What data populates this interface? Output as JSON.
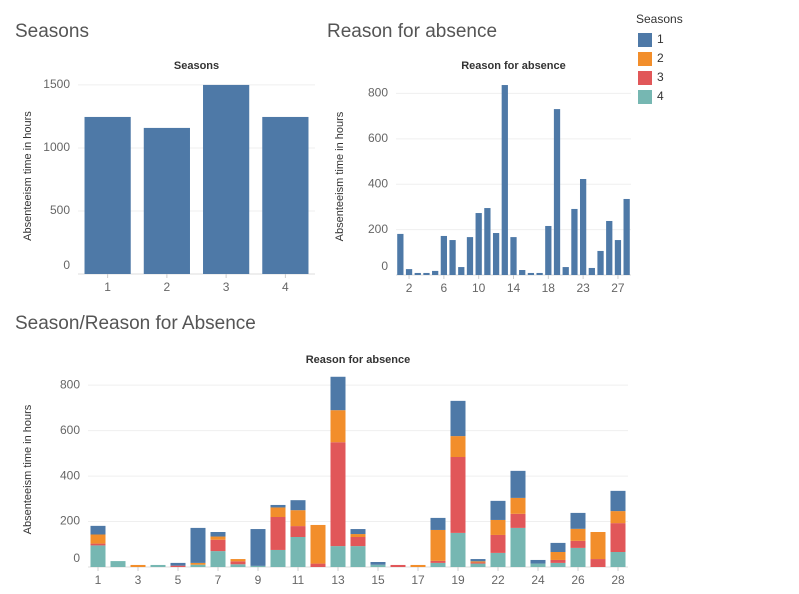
{
  "chart_data": [
    {
      "type": "bar",
      "heading": "Seasons",
      "title": "Seasons",
      "y_label": "Absenteeism time in hours",
      "categories": [
        1,
        2,
        3,
        4
      ],
      "values": [
        1246,
        1159,
        1500,
        1246
      ],
      "color": "#4e79a7",
      "ylim": [
        0,
        1555
      ],
      "yticks": [
        0,
        500,
        1000,
        1500
      ],
      "grid": true
    },
    {
      "type": "bar",
      "heading": "Reason for absence",
      "title": "Reason for absence",
      "y_label": "Absenteeism time in hours",
      "categories": [
        null,
        2,
        null,
        null,
        null,
        6,
        null,
        null,
        null,
        10,
        null,
        null,
        null,
        14,
        null,
        null,
        null,
        18,
        null,
        null,
        null,
        23,
        null,
        null,
        null,
        27,
        null
      ],
      "values": [
        181,
        26,
        9,
        9,
        18,
        172,
        154,
        35,
        167,
        273,
        295,
        185,
        837,
        167,
        22,
        9,
        9,
        216,
        731,
        35,
        291,
        423,
        31,
        106,
        238,
        154,
        335
      ],
      "color": "#4e79a7",
      "ylim": [
        0,
        868
      ],
      "yticks": [
        0,
        200,
        400,
        600,
        800
      ],
      "grid": true
    },
    {
      "type": "stacked_bar",
      "heading": "Season/Reason for Absence",
      "title": "Reason for absence",
      "y_label": "Absenteeism time in hours",
      "legend_title": "Seasons",
      "categories": [
        1,
        null,
        3,
        null,
        5,
        null,
        7,
        null,
        9,
        null,
        11,
        null,
        13,
        null,
        15,
        null,
        17,
        null,
        19,
        null,
        22,
        null,
        24,
        null,
        26,
        null,
        28
      ],
      "series": [
        {
          "name": "1",
          "color": "#4e79a7",
          "values": [
            38,
            null,
            null,
            null,
            12,
            154,
            20,
            null,
            162,
            11,
            44,
            null,
            147,
            22,
            12,
            null,
            null,
            53,
            155,
            10,
            84,
            119,
            16,
            40,
            70,
            null,
            89
          ]
        },
        {
          "name": "2",
          "color": "#f28e2b",
          "values": [
            40,
            null,
            9,
            null,
            null,
            8,
            14,
            10,
            null,
            42,
            70,
            170,
            141,
            13,
            null,
            null,
            9,
            136,
            92,
            5,
            66,
            70,
            null,
            35,
            53,
            119,
            53
          ]
        },
        {
          "name": "3",
          "color": "#e15759",
          "values": [
            8,
            null,
            null,
            null,
            6,
            null,
            50,
            13,
            null,
            145,
            48,
            15,
            457,
            40,
            null,
            9,
            null,
            9,
            334,
            5,
            79,
            62,
            null,
            13,
            31,
            35,
            127
          ]
        },
        {
          "name": "4",
          "color": "#76b7b2",
          "values": [
            95,
            26,
            null,
            9,
            null,
            10,
            70,
            12,
            5,
            75,
            132,
            null,
            92,
            92,
            10,
            null,
            null,
            18,
            150,
            15,
            62,
            172,
            15,
            18,
            84,
            null,
            66
          ]
        }
      ],
      "ylim": [
        0,
        858
      ],
      "yticks": [
        0,
        200,
        400,
        600,
        800
      ],
      "grid": true
    }
  ]
}
